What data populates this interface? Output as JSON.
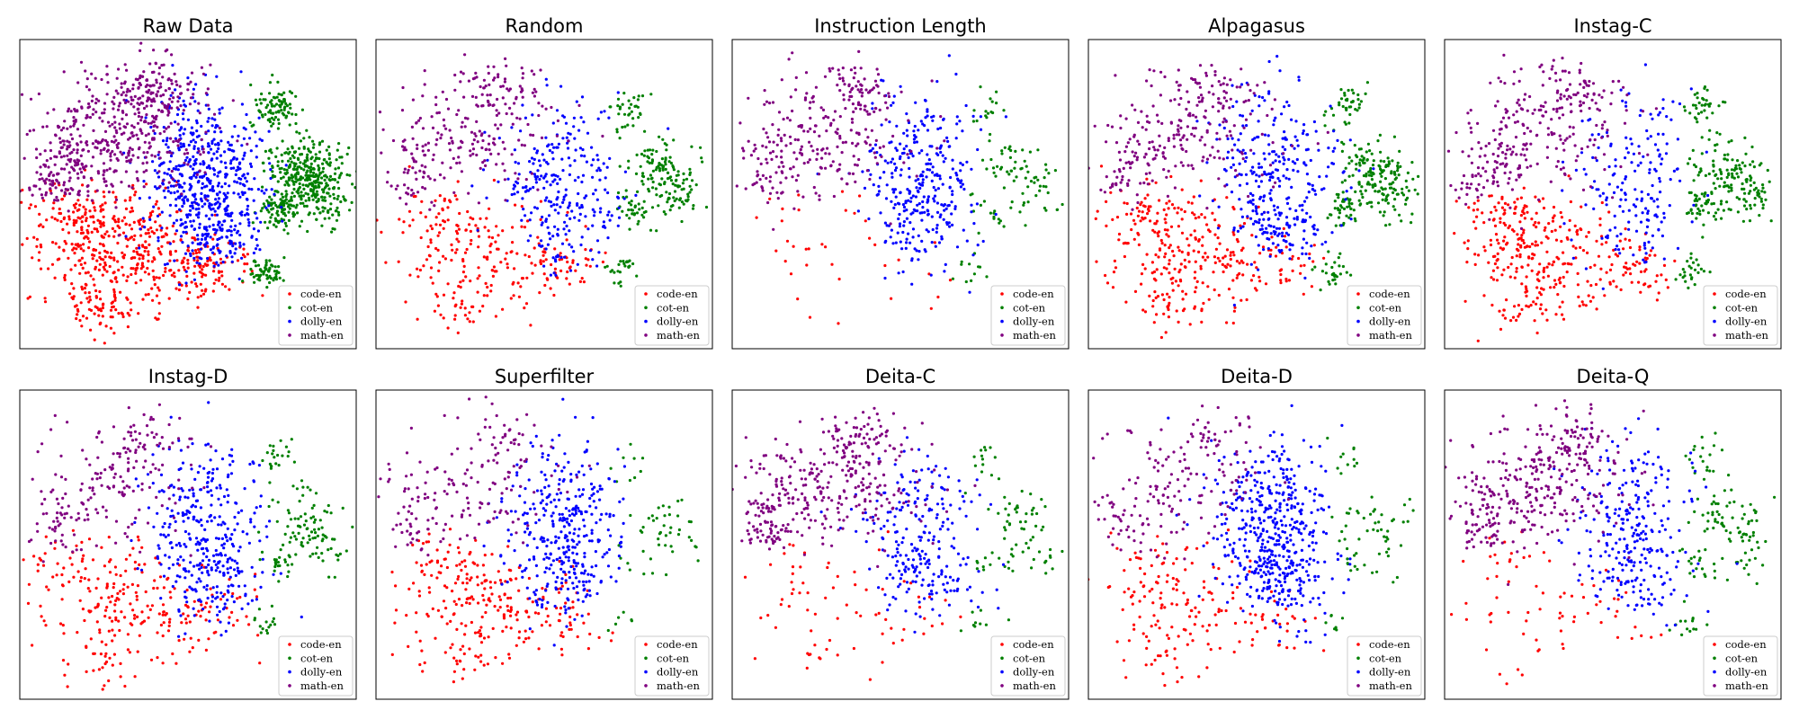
{
  "chart_data": {
    "type": "scatter",
    "layout": "2x5 grid of t-SNE scatter panels",
    "axes_visible": false,
    "grid": false,
    "legend_placement": "lower-right",
    "series": [
      {
        "name": "code-en",
        "color": "#ff0000"
      },
      {
        "name": "cot-en",
        "color": "#008000"
      },
      {
        "name": "dolly-en",
        "color": "#0000ff"
      },
      {
        "name": "math-en",
        "color": "#800080"
      }
    ],
    "panels": [
      {
        "title": "Raw Data",
        "relative_density": {
          "code-en": 1.0,
          "cot-en": 1.0,
          "dolly-en": 1.0,
          "math-en": 1.0
        }
      },
      {
        "title": "Random",
        "relative_density": {
          "code-en": 0.45,
          "cot-en": 0.4,
          "dolly-en": 0.45,
          "math-en": 0.45
        }
      },
      {
        "title": "Instruction Length",
        "relative_density": {
          "code-en": 0.06,
          "cot-en": 0.18,
          "dolly-en": 0.55,
          "math-en": 0.5
        }
      },
      {
        "title": "Alpagasus",
        "relative_density": {
          "code-en": 0.55,
          "cot-en": 0.45,
          "dolly-en": 0.55,
          "math-en": 0.45
        }
      },
      {
        "title": "Instag-C",
        "relative_density": {
          "code-en": 0.6,
          "cot-en": 0.4,
          "dolly-en": 0.3,
          "math-en": 0.5
        }
      },
      {
        "title": "Instag-D",
        "relative_density": {
          "code-en": 0.45,
          "cot-en": 0.25,
          "dolly-en": 0.6,
          "math-en": 0.35
        }
      },
      {
        "title": "Superfilter",
        "relative_density": {
          "code-en": 0.45,
          "cot-en": 0.1,
          "dolly-en": 0.6,
          "math-en": 0.3
        }
      },
      {
        "title": "Deita-C",
        "relative_density": {
          "code-en": 0.12,
          "cot-en": 0.15,
          "dolly-en": 0.4,
          "math-en": 0.65
        }
      },
      {
        "title": "Deita-D",
        "relative_density": {
          "code-en": 0.3,
          "cot-en": 0.12,
          "dolly-en": 0.85,
          "math-en": 0.3
        }
      },
      {
        "title": "Deita-Q",
        "relative_density": {
          "code-en": 0.12,
          "cot-en": 0.22,
          "dolly-en": 0.45,
          "math-en": 0.6
        }
      }
    ]
  }
}
